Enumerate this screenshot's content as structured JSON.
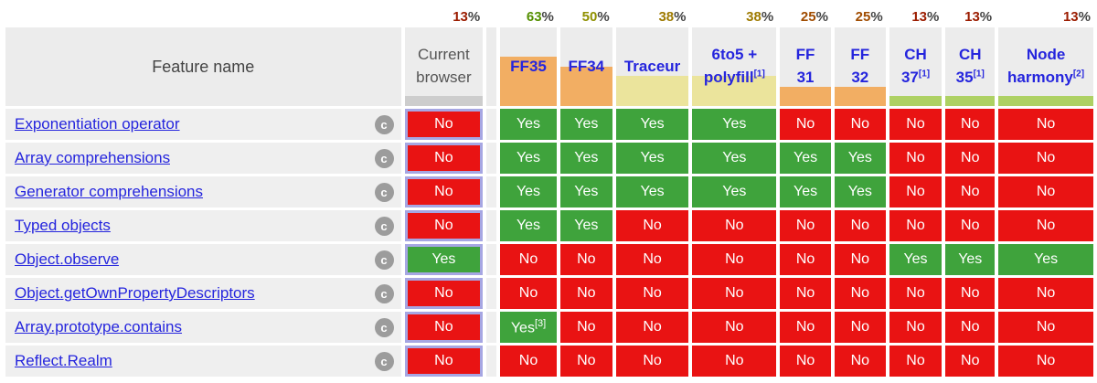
{
  "table": {
    "feature_header": "Feature name",
    "percent_sign": "%",
    "c_badge": "c",
    "columns": [
      {
        "key": "current",
        "lines": [
          "Current",
          "browser"
        ],
        "sup": "",
        "pct": "13",
        "pct_color": "#9b1c00",
        "bar_color": "#cdcdcd",
        "bar_pct": 13,
        "is_link": false
      },
      {
        "key": "ff35",
        "lines": [
          "FF35"
        ],
        "sup": "",
        "pct": "63",
        "pct_color": "#548f00",
        "bar_color": "#f2ae63",
        "bar_pct": 63,
        "is_link": true
      },
      {
        "key": "ff34",
        "lines": [
          "FF34"
        ],
        "sup": "",
        "pct": "50",
        "pct_color": "#8f9000",
        "bar_color": "#f2ae63",
        "bar_pct": 50,
        "is_link": true
      },
      {
        "key": "traceur",
        "lines": [
          "Traceur"
        ],
        "sup": "",
        "pct": "38",
        "pct_color": "#9e7a00",
        "bar_color": "#ebe49c",
        "bar_pct": 38,
        "is_link": true
      },
      {
        "key": "6to5-polyfill",
        "lines": [
          "6to5 +",
          "polyfill"
        ],
        "sup": "[1]",
        "pct": "38",
        "pct_color": "#9e7a00",
        "bar_color": "#ebe49c",
        "bar_pct": 38,
        "is_link": true
      },
      {
        "key": "ff31",
        "lines": [
          "FF",
          "31"
        ],
        "sup": "",
        "pct": "25",
        "pct_color": "#a04c00",
        "bar_color": "#f2ae63",
        "bar_pct": 25,
        "is_link": true
      },
      {
        "key": "ff32",
        "lines": [
          "FF",
          "32"
        ],
        "sup": "",
        "pct": "25",
        "pct_color": "#a04c00",
        "bar_color": "#f2ae63",
        "bar_pct": 25,
        "is_link": true
      },
      {
        "key": "ch37",
        "lines": [
          "CH",
          "37"
        ],
        "sup": "[1]",
        "pct": "13",
        "pct_color": "#9b1c00",
        "bar_color": "#aed164",
        "bar_pct": 13,
        "is_link": true
      },
      {
        "key": "ch35",
        "lines": [
          "CH",
          "35"
        ],
        "sup": "[1]",
        "pct": "13",
        "pct_color": "#9b1c00",
        "bar_color": "#aed164",
        "bar_pct": 13,
        "is_link": true
      },
      {
        "key": "node-harmony",
        "lines": [
          "Node",
          "harmony"
        ],
        "sup": "[2]",
        "pct": "13",
        "pct_color": "#9b1c00",
        "bar_color": "#aed164",
        "bar_pct": 13,
        "is_link": true
      }
    ],
    "rows": [
      {
        "feature": "Exponentiation operator",
        "values": [
          "No",
          "Yes",
          "Yes",
          "Yes",
          "Yes",
          "No",
          "No",
          "No",
          "No",
          "No"
        ]
      },
      {
        "feature": "Array comprehensions",
        "values": [
          "No",
          "Yes",
          "Yes",
          "Yes",
          "Yes",
          "Yes",
          "Yes",
          "No",
          "No",
          "No"
        ]
      },
      {
        "feature": "Generator comprehensions",
        "values": [
          "No",
          "Yes",
          "Yes",
          "Yes",
          "Yes",
          "Yes",
          "Yes",
          "No",
          "No",
          "No"
        ]
      },
      {
        "feature": "Typed objects",
        "values": [
          "No",
          "Yes",
          "Yes",
          "No",
          "No",
          "No",
          "No",
          "No",
          "No",
          "No"
        ]
      },
      {
        "feature": "Object.observe",
        "values": [
          "Yes",
          "No",
          "No",
          "No",
          "No",
          "No",
          "No",
          "Yes",
          "Yes",
          "Yes"
        ]
      },
      {
        "feature": "Object.getOwnPropertyDescriptors",
        "values": [
          "No",
          "No",
          "No",
          "No",
          "No",
          "No",
          "No",
          "No",
          "No",
          "No"
        ]
      },
      {
        "feature": "Array.prototype.contains",
        "values": [
          "No",
          "Yes[3]",
          "No",
          "No",
          "No",
          "No",
          "No",
          "No",
          "No",
          "No"
        ]
      },
      {
        "feature": "Reflect.Realm",
        "values": [
          "No",
          "No",
          "No",
          "No",
          "No",
          "No",
          "No",
          "No",
          "No",
          "No"
        ]
      }
    ]
  },
  "colors": {
    "yes_bg": "#3fa33c",
    "no_bg": "#e91313",
    "highlight_border": "#a6a6e3",
    "link_blue": "#2525dd"
  }
}
